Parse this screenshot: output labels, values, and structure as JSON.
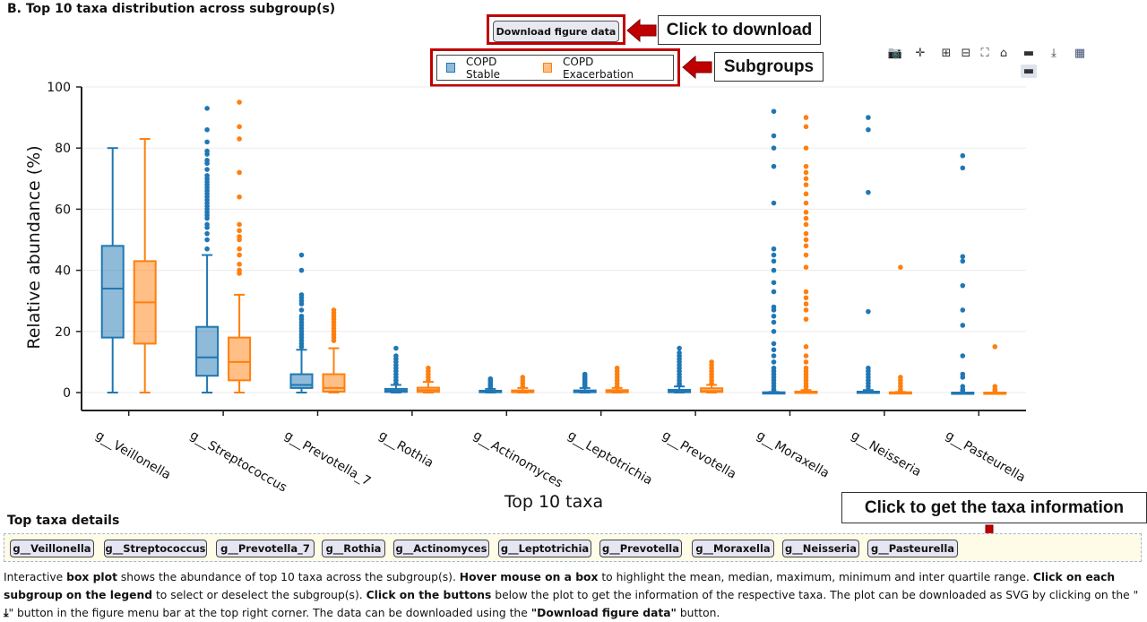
{
  "section_title": "B. Top 10 taxa distribution across subgroup(s)",
  "download_button_label": "Download figure data",
  "callouts": {
    "download": "Click to download",
    "subgroups": "Subgroups",
    "taxa_info": "Click to get the taxa information"
  },
  "colors": {
    "stable": "#1f77b4",
    "exacerbation": "#ff7f0e",
    "callout_border": "#c00000"
  },
  "modebar_icons": [
    "camera-icon",
    "pan-icon",
    "zoom-in-icon",
    "zoom-out-icon",
    "autoscale-icon",
    "home-icon",
    "spike-icon",
    "download-svg-icon",
    "plotly-logo-icon"
  ],
  "chart_data": {
    "type": "box",
    "xlabel": "Top 10 taxa",
    "ylabel": "Relative abundance (%)",
    "ylim": [
      0,
      100
    ],
    "yticks": [
      0,
      20,
      40,
      60,
      80,
      100
    ],
    "legend_position": "top-center",
    "grid": true,
    "categories": [
      "g__Veillonella",
      "g__Streptococcus",
      "g__Prevotella_7",
      "g__Rothia",
      "g__Actinomyces",
      "g__Leptotrichia",
      "g__Prevotella",
      "g__Moraxella",
      "g__Neisseria",
      "g__Pasteurella"
    ],
    "series": [
      {
        "name": "COPD Stable",
        "boxes": [
          {
            "min": 0,
            "q1": 18,
            "median": 34,
            "q3": 48,
            "max": 80,
            "outliers": []
          },
          {
            "min": 0,
            "q1": 5.5,
            "median": 11.5,
            "q3": 21.5,
            "max": 45,
            "outliers": [
              47,
              50,
              52,
              54,
              55,
              57,
              58,
              59,
              60,
              61,
              62,
              63,
              64,
              65,
              66,
              67,
              68,
              69,
              70,
              71,
              73,
              75,
              76,
              78,
              79,
              82,
              86,
              93
            ]
          },
          {
            "min": 0,
            "q1": 1.5,
            "median": 2.5,
            "q3": 6,
            "max": 14,
            "outliers": [
              15,
              16,
              17,
              18,
              19,
              20,
              21,
              22,
              23,
              24,
              25,
              27,
              29,
              30,
              31,
              32,
              40,
              45
            ]
          },
          {
            "min": 0,
            "q1": 0.2,
            "median": 0.6,
            "q3": 1.2,
            "max": 2.5,
            "outliers": [
              3,
              4,
              5,
              6,
              7,
              8,
              9,
              10,
              11,
              12,
              14.5
            ]
          },
          {
            "min": 0,
            "q1": 0.1,
            "median": 0.3,
            "q3": 0.6,
            "max": 1.2,
            "outliers": [
              1.5,
              2,
              2.5,
              3,
              3.5,
              4,
              4.5
            ]
          },
          {
            "min": 0,
            "q1": 0.1,
            "median": 0.3,
            "q3": 0.7,
            "max": 1.5,
            "outliers": [
              2,
              2.5,
              3,
              3.5,
              4,
              4.5,
              5,
              5.5,
              6
            ]
          },
          {
            "min": 0,
            "q1": 0.1,
            "median": 0.4,
            "q3": 0.9,
            "max": 2,
            "outliers": [
              2.5,
              3,
              4,
              5,
              6,
              7,
              8,
              9,
              10,
              11,
              12,
              13,
              14.5
            ]
          },
          {
            "min": 0,
            "q1": 0,
            "median": 0,
            "q3": 0.1,
            "max": 0.2,
            "outliers": [
              0.5,
              1,
              2,
              3,
              4,
              5,
              6,
              7,
              8,
              10,
              12,
              14,
              16,
              20,
              23,
              25,
              27,
              28,
              33,
              36,
              40,
              43,
              45,
              47,
              62,
              74,
              80,
              84,
              92
            ]
          },
          {
            "min": 0,
            "q1": 0,
            "median": 0.1,
            "q3": 0.3,
            "max": 0.8,
            "outliers": [
              1,
              2,
              3,
              4,
              5,
              6,
              7,
              8,
              26.5,
              65.5,
              86,
              90
            ]
          },
          {
            "min": 0,
            "q1": 0,
            "median": 0,
            "q3": 0,
            "max": 0,
            "outliers": [
              0.5,
              1,
              2,
              5,
              6,
              12,
              22,
              27,
              35,
              43,
              44.5,
              73.5,
              77.5
            ]
          }
        ]
      },
      {
        "name": "COPD Exacerbation",
        "boxes": [
          {
            "min": 0,
            "q1": 16,
            "median": 29.5,
            "q3": 43,
            "max": 83,
            "outliers": []
          },
          {
            "min": 0,
            "q1": 4,
            "median": 10,
            "q3": 18,
            "max": 32,
            "outliers": [
              39,
              40,
              42,
              45,
              47,
              50,
              51,
              53,
              55,
              64,
              72,
              83,
              87,
              95
            ]
          },
          {
            "min": 0,
            "q1": 0.3,
            "median": 1.5,
            "q3": 6,
            "max": 14.5,
            "outliers": [
              17,
              18,
              19,
              20,
              21,
              22,
              23,
              24,
              25,
              26,
              27
            ]
          },
          {
            "min": 0,
            "q1": 0.2,
            "median": 0.8,
            "q3": 1.6,
            "max": 3.5,
            "outliers": [
              4,
              5,
              6,
              7,
              8
            ]
          },
          {
            "min": 0,
            "q1": 0.1,
            "median": 0.3,
            "q3": 0.7,
            "max": 1.5,
            "outliers": [
              2,
              3,
              4,
              5
            ]
          },
          {
            "min": 0,
            "q1": 0.1,
            "median": 0.4,
            "q3": 0.8,
            "max": 1.5,
            "outliers": [
              2,
              3,
              4,
              5,
              6,
              7,
              8
            ]
          },
          {
            "min": 0,
            "q1": 0.2,
            "median": 0.5,
            "q3": 1.4,
            "max": 2.5,
            "outliers": [
              3,
              4,
              5,
              6,
              7,
              8,
              9,
              10
            ]
          },
          {
            "min": 0,
            "q1": 0,
            "median": 0.1,
            "q3": 0.3,
            "max": 0.8,
            "outliers": [
              1,
              2,
              3,
              4,
              5,
              6,
              7,
              8,
              10,
              12,
              15,
              24,
              27,
              29,
              31,
              33,
              41,
              45,
              48,
              50,
              52,
              55,
              57,
              59,
              62,
              65,
              68,
              70,
              72,
              74,
              80,
              87,
              90
            ]
          },
          {
            "min": 0,
            "q1": 0,
            "median": 0,
            "q3": 0.1,
            "max": 0.2,
            "outliers": [
              0.5,
              1,
              2,
              3,
              4,
              5,
              41
            ]
          },
          {
            "min": 0,
            "q1": 0,
            "median": 0,
            "q3": 0,
            "max": 0,
            "outliers": [
              0.3,
              1,
              2,
              15
            ]
          }
        ]
      }
    ]
  },
  "taxa_details": {
    "heading": "Top taxa details",
    "buttons": [
      "g__Veillonella",
      "g__Streptococcus",
      "g__Prevotella_7",
      "g__Rothia",
      "g__Actinomyces",
      "g__Leptotrichia",
      "g__Prevotella",
      "g__Moraxella",
      "g__Neisseria",
      "g__Pasteurella"
    ]
  },
  "description": {
    "p1": "Interactive ",
    "b1": "box plot",
    "p2": " shows the abundance of top 10 taxa across the subgroup(s). ",
    "b2": "Hover mouse on a box",
    "p3": " to highlight the mean, median, maximum, minimum and inter quartile range. ",
    "b3": "Click on each subgroup on the legend",
    "p4": " to select or deselect the subgroup(s). ",
    "b4": "Click on the buttons",
    "p5": " below the plot to get the information of the respective taxa. The plot can be downloaded as SVG by clicking on the \"",
    "p6": "\" button in the figure menu bar at the top right corner. The data can be downloaded using the ",
    "b5": "\"Download figure data\"",
    "p7": " button."
  }
}
